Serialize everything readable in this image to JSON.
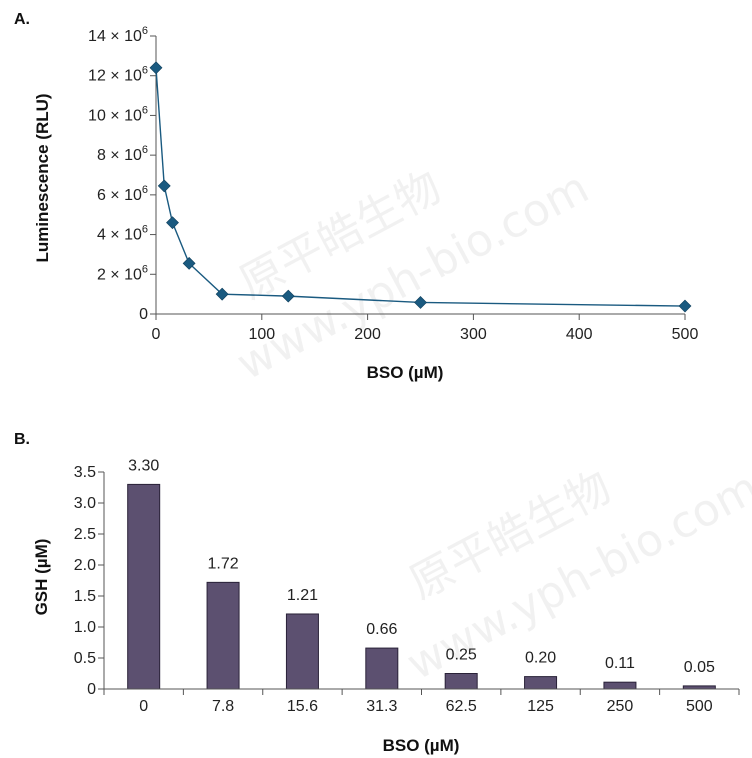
{
  "chart_data": [
    {
      "panel_label": "A.",
      "type": "line",
      "xlabel": "BSO (µM)",
      "ylabel": "Luminescence (RLU)",
      "xlim": [
        0,
        500
      ],
      "ylim": [
        0,
        14000000
      ],
      "x_ticks": [
        0,
        100,
        200,
        300,
        400,
        500
      ],
      "y_ticks": [
        0,
        2000000,
        4000000,
        6000000,
        8000000,
        10000000,
        12000000,
        14000000
      ],
      "y_tick_labels": [
        {
          "text": "0",
          "sup": ""
        },
        {
          "text": "2 × 10",
          "sup": "6"
        },
        {
          "text": "4 × 10",
          "sup": "6"
        },
        {
          "text": "6 × 10",
          "sup": "6"
        },
        {
          "text": "8 × 10",
          "sup": "6"
        },
        {
          "text": "10 × 10",
          "sup": "6"
        },
        {
          "text": "12 × 10",
          "sup": "6"
        },
        {
          "text": "14 × 10",
          "sup": "6"
        }
      ],
      "series": [
        {
          "x": [
            0,
            7.8,
            15.6,
            31.3,
            62.5,
            125,
            250,
            500
          ],
          "y": [
            12400000,
            6450000,
            4600000,
            2550000,
            1000000,
            900000,
            580000,
            400000
          ]
        }
      ],
      "marker": "diamond",
      "color": "#1a5a80"
    },
    {
      "panel_label": "B.",
      "type": "bar",
      "xlabel": "BSO (µM)",
      "ylabel": "GSH (µM)",
      "ylim": [
        0,
        3.5
      ],
      "y_ticks": [
        "0",
        "0.5",
        "1.0",
        "1.5",
        "2.0",
        "2.5",
        "3.0",
        "3.5"
      ],
      "categories": [
        "0",
        "7.8",
        "15.6",
        "31.3",
        "62.5",
        "125",
        "250",
        "500"
      ],
      "values": [
        3.3,
        1.72,
        1.21,
        0.66,
        0.25,
        0.2,
        0.11,
        0.05
      ],
      "data_labels": [
        "3.30",
        "1.72",
        "1.21",
        "0.66",
        "0.25",
        "0.20",
        "0.11",
        "0.05"
      ],
      "color": "#5c5070"
    }
  ],
  "watermark": {
    "lines": [
      "原平皓生物",
      "www.yph-bio.com"
    ]
  }
}
